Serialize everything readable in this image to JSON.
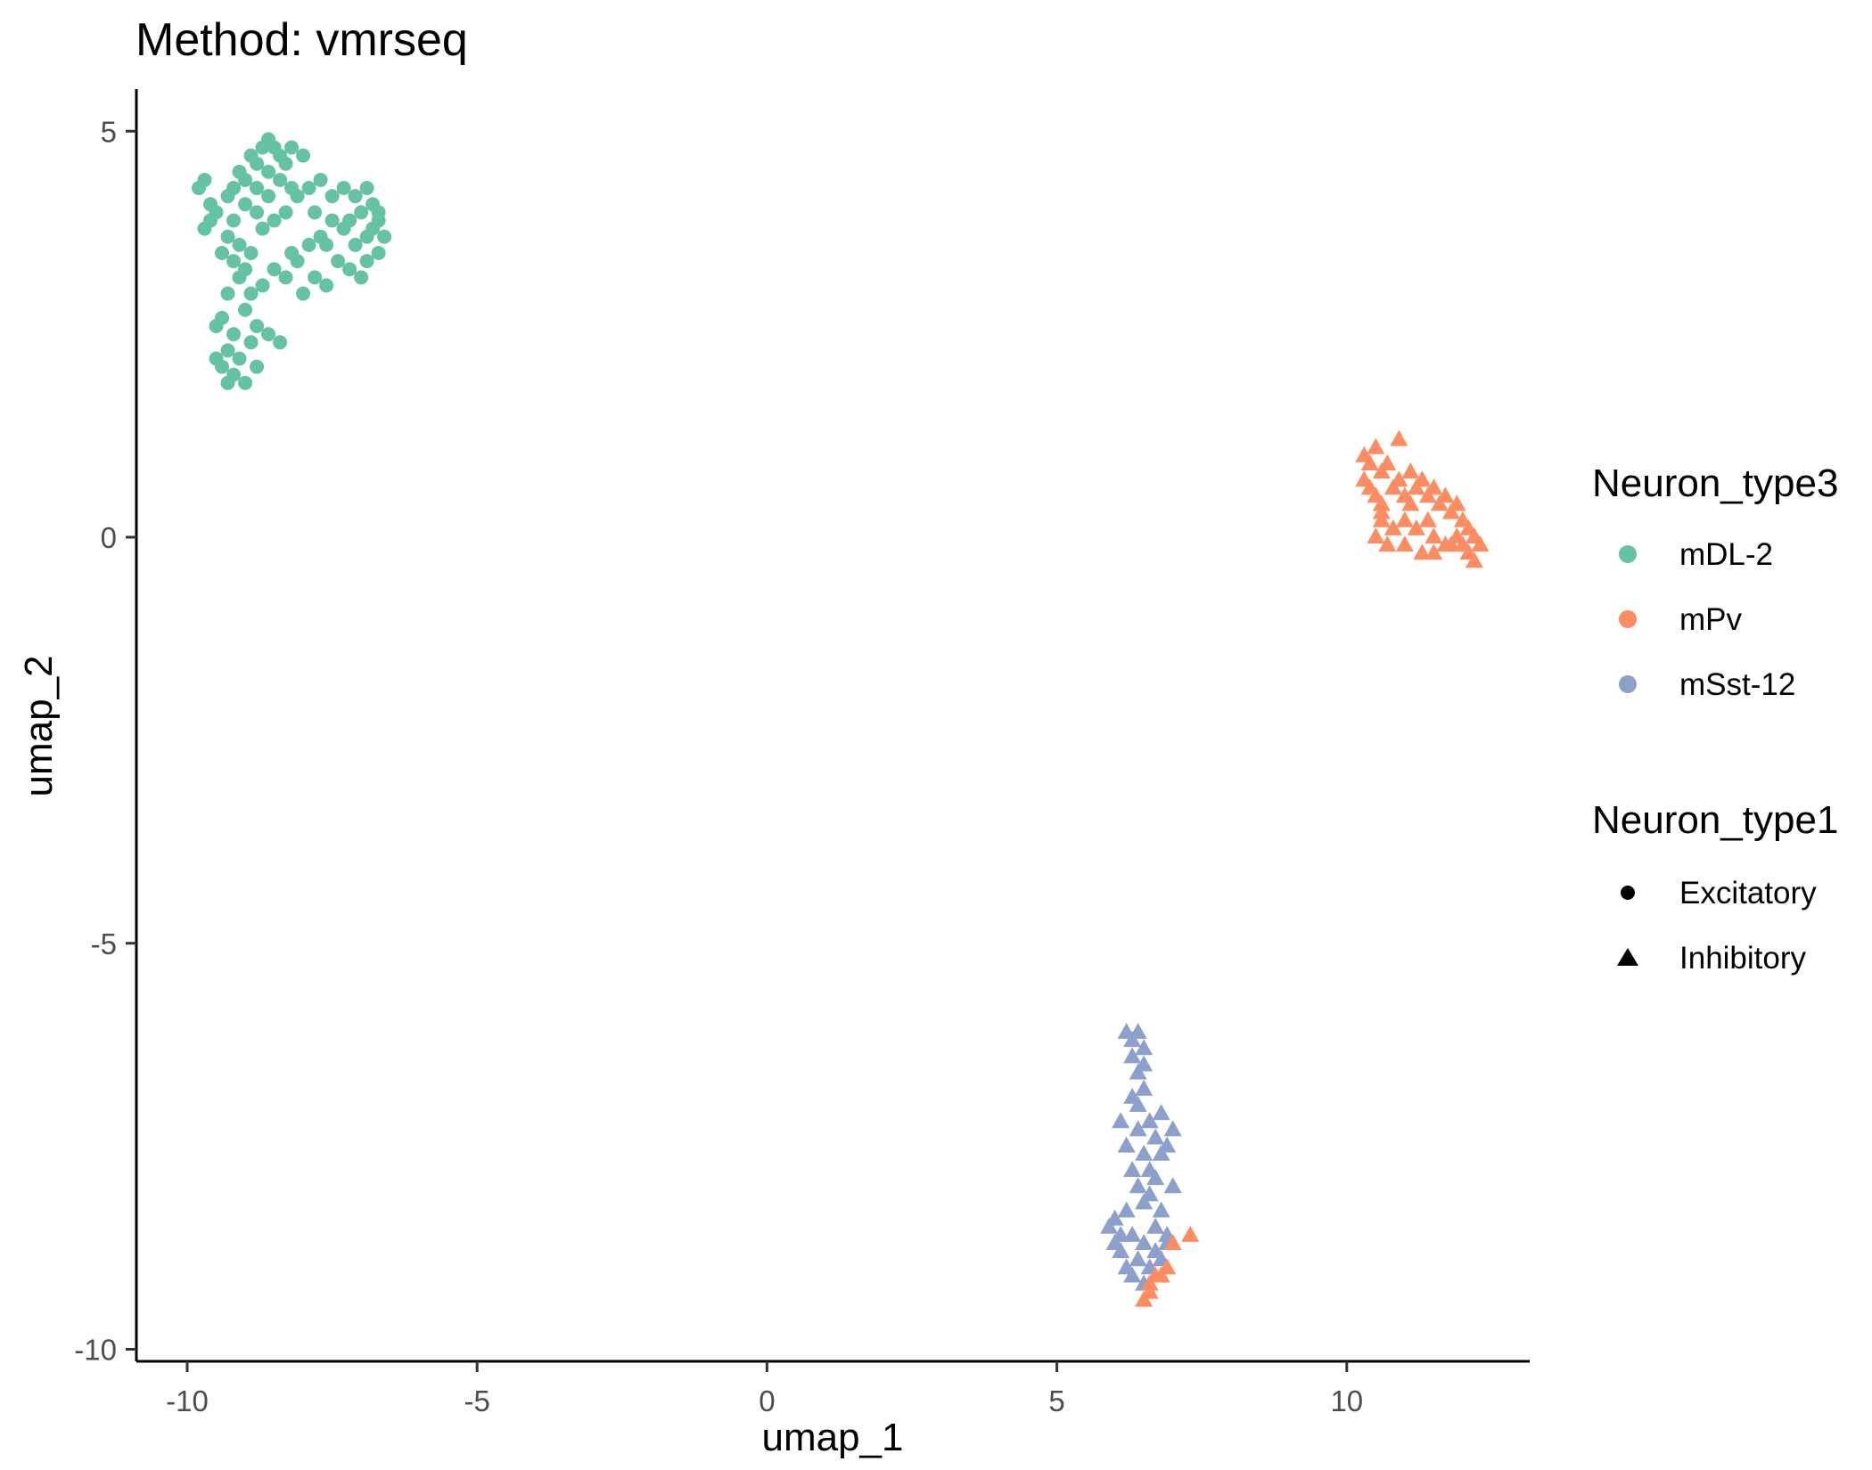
{
  "chart_data": {
    "type": "scatter",
    "title": "Method: vmrseq",
    "xlabel": "umap_1",
    "ylabel": "umap_2",
    "xlim": [
      -10.9,
      13.4
    ],
    "ylim": [
      -10.2,
      5.5
    ],
    "x_ticks": [
      -10,
      -5,
      0,
      5,
      10
    ],
    "y_ticks": [
      -10,
      -5,
      0,
      5
    ],
    "x_tick_labels": [
      "-10",
      "-5",
      "0",
      "5",
      "10"
    ],
    "y_tick_labels": [
      "-10",
      "-5",
      "0",
      "5"
    ],
    "grid": false,
    "legend_placement": "right",
    "colors": {
      "mDL-2": "#66c2a5",
      "mPv": "#fc8d62",
      "mSst-12": "#8da0cb",
      "shape_key": "#000000"
    },
    "legend": {
      "color_title": "Neuron_type3",
      "color_entries": [
        "mDL-2",
        "mPv",
        "mSst-12"
      ],
      "shape_title": "Neuron_type1",
      "shape_entries": [
        "Excitatory",
        "Inhibitory"
      ]
    },
    "series": [
      {
        "name": "mDL-2",
        "shape": "circle",
        "points": [
          [
            -9.8,
            4.3
          ],
          [
            -9.7,
            4.4
          ],
          [
            -9.6,
            4.1
          ],
          [
            -9.5,
            4.0
          ],
          [
            -9.6,
            3.9
          ],
          [
            -9.3,
            4.2
          ],
          [
            -9.2,
            4.3
          ],
          [
            -9.1,
            4.5
          ],
          [
            -9.0,
            4.4
          ],
          [
            -8.9,
            4.7
          ],
          [
            -8.8,
            4.6
          ],
          [
            -8.7,
            4.8
          ],
          [
            -8.6,
            4.9
          ],
          [
            -8.5,
            4.8
          ],
          [
            -8.4,
            4.7
          ],
          [
            -8.3,
            4.6
          ],
          [
            -8.2,
            4.8
          ],
          [
            -8.0,
            4.7
          ],
          [
            -8.6,
            4.5
          ],
          [
            -8.8,
            4.3
          ],
          [
            -9.0,
            4.1
          ],
          [
            -9.2,
            3.9
          ],
          [
            -9.3,
            3.7
          ],
          [
            -9.1,
            3.6
          ],
          [
            -8.9,
            3.5
          ],
          [
            -8.7,
            3.8
          ],
          [
            -8.5,
            3.9
          ],
          [
            -8.3,
            4.0
          ],
          [
            -8.1,
            4.2
          ],
          [
            -7.9,
            4.3
          ],
          [
            -7.7,
            4.4
          ],
          [
            -7.5,
            4.2
          ],
          [
            -7.3,
            4.3
          ],
          [
            -7.1,
            4.2
          ],
          [
            -6.9,
            4.3
          ],
          [
            -6.8,
            4.1
          ],
          [
            -6.7,
            3.9
          ],
          [
            -6.6,
            3.7
          ],
          [
            -6.7,
            3.5
          ],
          [
            -6.9,
            3.4
          ],
          [
            -7.1,
            3.6
          ],
          [
            -7.3,
            3.8
          ],
          [
            -7.5,
            3.9
          ],
          [
            -7.7,
            3.7
          ],
          [
            -7.9,
            3.6
          ],
          [
            -8.1,
            3.4
          ],
          [
            -8.3,
            3.2
          ],
          [
            -8.5,
            3.3
          ],
          [
            -8.7,
            3.1
          ],
          [
            -8.9,
            3.0
          ],
          [
            -9.1,
            3.2
          ],
          [
            -9.3,
            3.0
          ],
          [
            -9.0,
            2.8
          ],
          [
            -8.8,
            2.6
          ],
          [
            -8.6,
            2.5
          ],
          [
            -8.4,
            2.4
          ],
          [
            -8.9,
            2.4
          ],
          [
            -9.2,
            2.5
          ],
          [
            -9.4,
            2.7
          ],
          [
            -9.5,
            2.6
          ],
          [
            -9.3,
            2.3
          ],
          [
            -9.1,
            2.2
          ],
          [
            -9.4,
            2.1
          ],
          [
            -9.5,
            2.2
          ],
          [
            -9.2,
            2.0
          ],
          [
            -9.0,
            1.9
          ],
          [
            -9.3,
            1.9
          ],
          [
            -8.8,
            2.1
          ],
          [
            -7.0,
            3.2
          ],
          [
            -7.2,
            3.3
          ],
          [
            -7.4,
            3.4
          ],
          [
            -7.6,
            3.1
          ],
          [
            -7.8,
            3.2
          ],
          [
            -8.0,
            3.0
          ],
          [
            -8.2,
            3.5
          ],
          [
            -6.8,
            3.8
          ],
          [
            -6.7,
            4.0
          ],
          [
            -9.7,
            3.8
          ],
          [
            -9.4,
            3.5
          ],
          [
            -9.0,
            3.3
          ],
          [
            -8.6,
            4.2
          ],
          [
            -8.4,
            4.4
          ],
          [
            -8.2,
            4.3
          ],
          [
            -7.8,
            4.0
          ],
          [
            -7.6,
            3.6
          ],
          [
            -7.2,
            3.9
          ],
          [
            -7.0,
            4.0
          ],
          [
            -6.9,
            3.7
          ],
          [
            -8.8,
            4.0
          ],
          [
            -9.2,
            3.4
          ]
        ]
      },
      {
        "name": "mPv",
        "shape": "triangle",
        "points": [
          [
            10.3,
            1.0
          ],
          [
            10.4,
            0.9
          ],
          [
            10.5,
            1.1
          ],
          [
            10.6,
            0.8
          ],
          [
            10.7,
            0.9
          ],
          [
            10.4,
            0.6
          ],
          [
            10.5,
            0.5
          ],
          [
            10.6,
            0.4
          ],
          [
            10.8,
            0.6
          ],
          [
            10.9,
            0.7
          ],
          [
            11.0,
            0.5
          ],
          [
            11.1,
            0.4
          ],
          [
            11.2,
            0.6
          ],
          [
            11.3,
            0.7
          ],
          [
            11.4,
            0.5
          ],
          [
            11.5,
            0.6
          ],
          [
            11.6,
            0.4
          ],
          [
            11.7,
            0.5
          ],
          [
            11.8,
            0.3
          ],
          [
            11.9,
            0.4
          ],
          [
            12.0,
            0.2
          ],
          [
            12.1,
            0.1
          ],
          [
            12.2,
            0.0
          ],
          [
            12.3,
            -0.1
          ],
          [
            12.2,
            -0.3
          ],
          [
            12.0,
            -0.1
          ],
          [
            11.9,
            0.0
          ],
          [
            11.7,
            -0.1
          ],
          [
            11.5,
            0.0
          ],
          [
            11.4,
            0.2
          ],
          [
            11.2,
            0.1
          ],
          [
            11.0,
            0.2
          ],
          [
            10.8,
            0.1
          ],
          [
            10.6,
            0.2
          ],
          [
            10.5,
            0.0
          ],
          [
            10.7,
            -0.1
          ],
          [
            11.0,
            -0.1
          ],
          [
            11.3,
            -0.2
          ],
          [
            11.5,
            -0.2
          ],
          [
            11.8,
            -0.1
          ],
          [
            12.1,
            -0.2
          ],
          [
            10.9,
            1.2
          ],
          [
            10.3,
            0.7
          ],
          [
            10.6,
            0.3
          ],
          [
            11.1,
            0.8
          ]
        ]
      },
      {
        "name": "mSst-12",
        "shape": "triangle",
        "points": [
          [
            6.2,
            -6.1
          ],
          [
            6.3,
            -6.2
          ],
          [
            6.4,
            -6.1
          ],
          [
            6.5,
            -6.3
          ],
          [
            6.3,
            -6.4
          ],
          [
            6.4,
            -6.6
          ],
          [
            6.5,
            -6.8
          ],
          [
            6.4,
            -7.0
          ],
          [
            6.6,
            -7.2
          ],
          [
            6.8,
            -7.1
          ],
          [
            7.0,
            -7.3
          ],
          [
            6.9,
            -7.5
          ],
          [
            6.7,
            -7.4
          ],
          [
            6.5,
            -7.6
          ],
          [
            6.3,
            -7.8
          ],
          [
            6.4,
            -8.0
          ],
          [
            6.5,
            -8.2
          ],
          [
            6.6,
            -8.1
          ],
          [
            6.8,
            -8.3
          ],
          [
            7.0,
            -8.0
          ],
          [
            6.9,
            -8.6
          ],
          [
            6.7,
            -8.5
          ],
          [
            6.5,
            -8.7
          ],
          [
            6.3,
            -8.6
          ],
          [
            6.1,
            -8.8
          ],
          [
            5.9,
            -8.5
          ],
          [
            6.0,
            -8.4
          ],
          [
            6.2,
            -8.3
          ],
          [
            6.4,
            -8.9
          ],
          [
            6.6,
            -9.0
          ],
          [
            6.3,
            -9.1
          ],
          [
            6.5,
            -9.2
          ],
          [
            6.7,
            -8.8
          ],
          [
            6.8,
            -8.9
          ],
          [
            6.2,
            -9.0
          ],
          [
            6.1,
            -8.6
          ],
          [
            6.0,
            -8.7
          ],
          [
            6.6,
            -7.8
          ],
          [
            6.7,
            -7.9
          ],
          [
            6.4,
            -7.3
          ],
          [
            6.2,
            -7.5
          ],
          [
            6.8,
            -7.6
          ],
          [
            6.5,
            -6.5
          ],
          [
            6.3,
            -6.9
          ],
          [
            6.9,
            -8.7
          ],
          [
            6.1,
            -7.2
          ]
        ]
      },
      {
        "name": "mPv",
        "shape": "triangle",
        "points": [
          [
            6.5,
            -9.4
          ],
          [
            6.6,
            -9.3
          ],
          [
            6.7,
            -9.1
          ],
          [
            6.9,
            -9.0
          ],
          [
            7.0,
            -8.7
          ],
          [
            7.3,
            -8.6
          ],
          [
            6.8,
            -9.1
          ],
          [
            6.6,
            -9.2
          ]
        ]
      }
    ]
  }
}
